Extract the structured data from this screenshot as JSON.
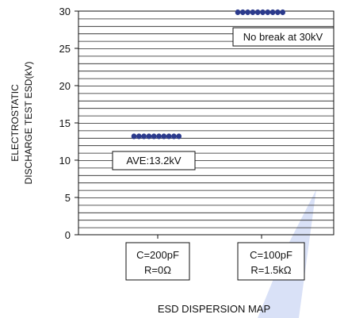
{
  "chart_data": {
    "type": "scatter",
    "ylabel_lines": [
      "ELECTROSTATIC",
      "DISCHARGE TEST ESD(kV)"
    ],
    "ylim": [
      0,
      30
    ],
    "yticks": [
      "0",
      "5",
      "10",
      "15",
      "20",
      "25",
      "30"
    ],
    "grid": true,
    "categories": [
      {
        "line1": "C=200pF",
        "line2": "R=0Ω"
      },
      {
        "line1": "C=100pF",
        "line2": "R=1.5kΩ"
      }
    ],
    "series": [
      {
        "category_index": 0,
        "values": [
          13.2,
          13.2,
          13.2,
          13.2,
          13.2,
          13.2,
          13.2,
          13.2,
          13.2,
          13.2
        ]
      },
      {
        "category_index": 1,
        "values": [
          30,
          30,
          30,
          30,
          30,
          30,
          30,
          30,
          30,
          30
        ]
      }
    ],
    "annotations": [
      {
        "text": "AVE:13.2kV"
      },
      {
        "text": "No break at 30kV"
      }
    ],
    "xlabel": "ESD DISPERSION MAP",
    "colors": {
      "points": "#2b3a8c",
      "watermark": "#c9d3f2"
    }
  }
}
